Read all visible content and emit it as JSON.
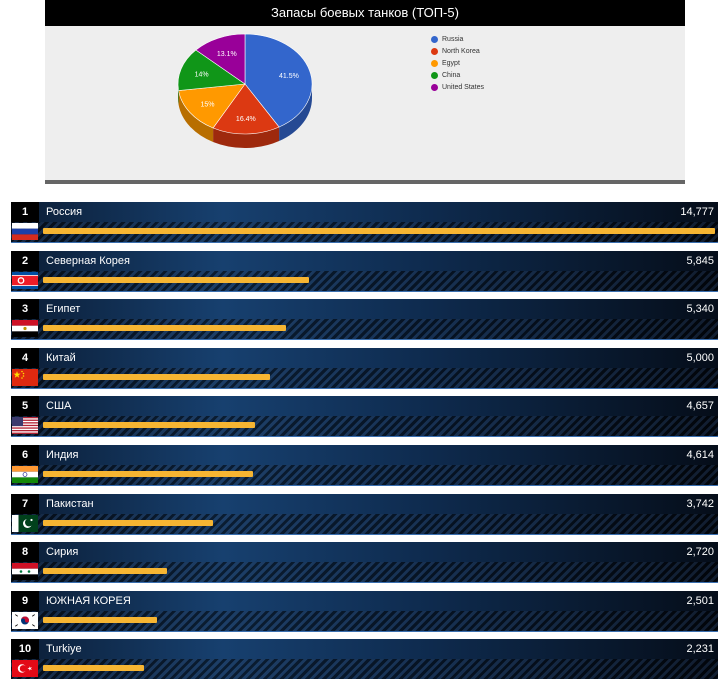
{
  "chart_data": {
    "type": "pie",
    "title": "Запасы боевых танков (ТОП-5)",
    "legend_position": "right",
    "slices": [
      {
        "label": "Russia",
        "value": 41.5,
        "value_label": "41.5%",
        "color": "#3366cc"
      },
      {
        "label": "North Korea",
        "value": 16.4,
        "value_label": "16.4%",
        "color": "#dc3912"
      },
      {
        "label": "Egypt",
        "value": 15,
        "value_label": "15%",
        "color": "#ff9900"
      },
      {
        "label": "China",
        "value": 14,
        "value_label": "14%",
        "color": "#109618"
      },
      {
        "label": "United States",
        "value": 13.1,
        "value_label": "13.1%",
        "color": "#990099"
      }
    ]
  },
  "ranking": {
    "max_value": 14777,
    "bar_color": "#f6b532",
    "rows": [
      {
        "rank": "1",
        "name": "Россия",
        "value_label": "14,777",
        "value": 14777,
        "flag": "russia-flag-icon"
      },
      {
        "rank": "2",
        "name": "Северная Корея",
        "value_label": "5,845",
        "value": 5845,
        "flag": "north-korea-flag-icon"
      },
      {
        "rank": "3",
        "name": "Египет",
        "value_label": "5,340",
        "value": 5340,
        "flag": "egypt-flag-icon"
      },
      {
        "rank": "4",
        "name": "Китай",
        "value_label": "5,000",
        "value": 5000,
        "flag": "china-flag-icon"
      },
      {
        "rank": "5",
        "name": "США",
        "value_label": "4,657",
        "value": 4657,
        "flag": "usa-flag-icon"
      },
      {
        "rank": "6",
        "name": "Индия",
        "value_label": "4,614",
        "value": 4614,
        "flag": "india-flag-icon"
      },
      {
        "rank": "7",
        "name": "Пакистан",
        "value_label": "3,742",
        "value": 3742,
        "flag": "pakistan-flag-icon"
      },
      {
        "rank": "8",
        "name": "Сирия",
        "value_label": "2,720",
        "value": 2720,
        "flag": "syria-flag-icon"
      },
      {
        "rank": "9",
        "name": "ЮЖНАЯ КОРЕЯ",
        "value_label": "2,501",
        "value": 2501,
        "flag": "south-korea-flag-icon"
      },
      {
        "rank": "10",
        "name": "Turkiye",
        "value_label": "2,231",
        "value": 2231,
        "flag": "turkey-flag-icon"
      }
    ]
  }
}
